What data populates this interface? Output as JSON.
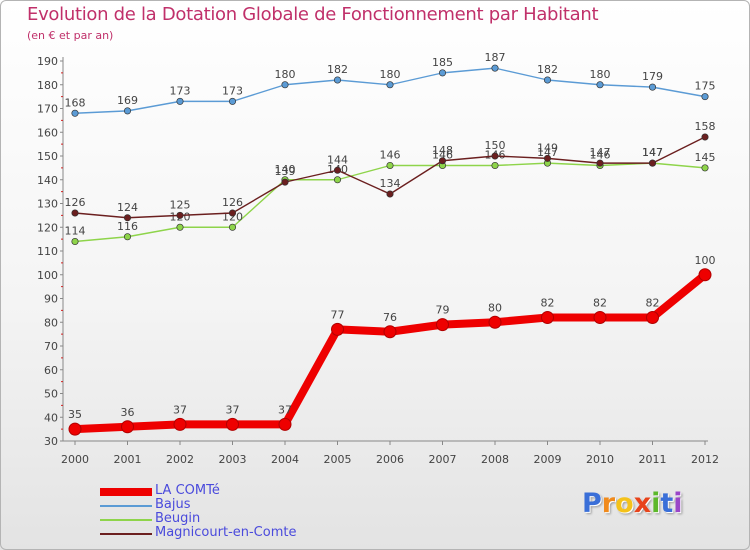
{
  "chart_data": {
    "type": "line",
    "title": "Evolution de la Dotation Globale de Fonctionnement par Habitant",
    "subtitle": "(en € et par an)",
    "xlabel": "",
    "ylabel": "",
    "categories": [
      "2000",
      "2001",
      "2002",
      "2003",
      "2004",
      "2005",
      "2006",
      "2007",
      "2008",
      "2009",
      "2010",
      "2011",
      "2012"
    ],
    "ylim": [
      30,
      190
    ],
    "yticks": [
      30,
      40,
      50,
      60,
      70,
      80,
      90,
      100,
      110,
      120,
      130,
      140,
      150,
      160,
      170,
      180,
      190
    ],
    "grid": false,
    "legend_position": "bottom-left",
    "series": [
      {
        "name": "LA COMTé",
        "color": "#ee0000",
        "values": [
          35,
          36,
          37,
          37,
          37,
          77,
          76,
          79,
          80,
          82,
          82,
          82,
          100
        ]
      },
      {
        "name": "Bajus",
        "color": "#5b9bd5",
        "values": [
          168,
          169,
          173,
          173,
          180,
          182,
          180,
          185,
          187,
          182,
          180,
          179,
          175
        ]
      },
      {
        "name": "Beugin",
        "color": "#8ed44a",
        "values": [
          114,
          116,
          120,
          120,
          140,
          140,
          146,
          146,
          146,
          147,
          146,
          147,
          145
        ]
      },
      {
        "name": "Magnicourt-en-Comte",
        "color": "#6b1f1f",
        "values": [
          126,
          124,
          125,
          126,
          139,
          144,
          134,
          148,
          150,
          149,
          147,
          147,
          158
        ]
      }
    ]
  },
  "logo": {
    "letters": [
      "P",
      "r",
      "o",
      "x",
      "i",
      "t",
      "i"
    ],
    "colors": [
      "#3a6fd8",
      "#f08a1c",
      "#f4c21a",
      "#e8431a",
      "#5cb82a",
      "#3a6fd8",
      "#9a46c8"
    ]
  }
}
